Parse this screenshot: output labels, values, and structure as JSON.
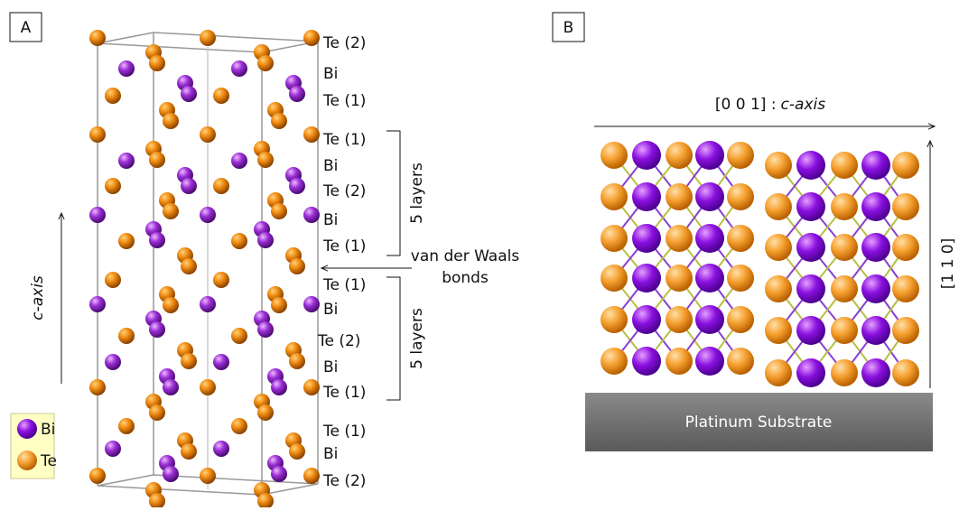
{
  "panel_a": {
    "label": "A",
    "layers": [
      "Te (2)",
      "Bi",
      "Te (1)",
      "Te (1)",
      "Bi",
      "Te (2)",
      "Bi",
      "Te (1)",
      "Te (1)",
      "Bi",
      "Te (2)",
      "Bi",
      "Te (1)",
      "Te (1)",
      "Bi",
      "Te (2)"
    ],
    "bracket_top": "5 layers",
    "bracket_bottom": "5 layers",
    "gap_label": [
      "van der Waals",
      "bonds"
    ],
    "axis_label": "c-axis",
    "legend": [
      "Bi",
      "Te"
    ]
  },
  "panel_b": {
    "label": "B",
    "axis_top": {
      "prefix": "[0 0 1] :",
      "italic": "c-axis"
    },
    "axis_right": "[1 1 0]",
    "substrate": "Platinum Substrate"
  }
}
